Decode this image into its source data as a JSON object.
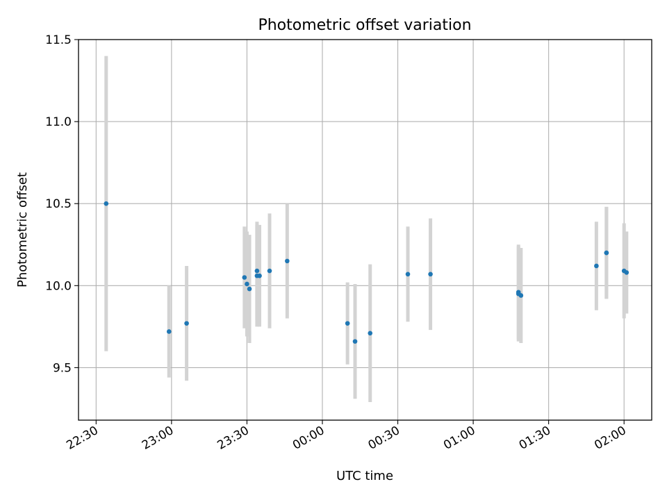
{
  "chart_data": {
    "type": "scatter",
    "title": "Photometric offset variation",
    "xlabel": "UTC time",
    "ylabel": "Photometric offset",
    "x_axis_type": "time",
    "xlim": [
      "22:23",
      "02:11"
    ],
    "ylim": [
      9.18,
      11.5
    ],
    "grid": true,
    "x_ticks": [
      "22:30",
      "23:00",
      "23:30",
      "00:00",
      "00:30",
      "01:00",
      "01:30",
      "02:00"
    ],
    "y_ticks": [
      9.5,
      10.0,
      10.5,
      11.0,
      11.5
    ],
    "y_tick_labels": [
      "9.5",
      "10.0",
      "10.5",
      "11.0",
      "11.5"
    ],
    "marker_color": "#1f77b4",
    "errorbar_color": "#d3d3d3",
    "points": [
      {
        "time": "22:34",
        "y": 10.5,
        "err": 0.9
      },
      {
        "time": "22:59",
        "y": 9.72,
        "err": 0.28
      },
      {
        "time": "23:06",
        "y": 9.77,
        "err": 0.35
      },
      {
        "time": "23:29",
        "y": 10.05,
        "err": 0.31
      },
      {
        "time": "23:30",
        "y": 10.01,
        "err": 0.32
      },
      {
        "time": "23:31",
        "y": 9.98,
        "err": 0.33
      },
      {
        "time": "23:34",
        "y": 10.09,
        "err": 0.3
      },
      {
        "time": "23:34",
        "y": 10.06,
        "err": 0.31
      },
      {
        "time": "23:35",
        "y": 10.06,
        "err": 0.31
      },
      {
        "time": "23:39",
        "y": 10.09,
        "err": 0.35
      },
      {
        "time": "23:46",
        "y": 10.15,
        "err": 0.35
      },
      {
        "time": "00:10",
        "y": 9.77,
        "err": 0.25
      },
      {
        "time": "00:13",
        "y": 9.66,
        "err": 0.35
      },
      {
        "time": "00:19",
        "y": 9.71,
        "err": 0.42
      },
      {
        "time": "00:34",
        "y": 10.07,
        "err": 0.29
      },
      {
        "time": "00:43",
        "y": 10.07,
        "err": 0.34
      },
      {
        "time": "01:18",
        "y": 9.96,
        "err": 0.29
      },
      {
        "time": "01:18",
        "y": 9.95,
        "err": 0.29
      },
      {
        "time": "01:19",
        "y": 9.94,
        "err": 0.29
      },
      {
        "time": "01:49",
        "y": 10.12,
        "err": 0.27
      },
      {
        "time": "01:53",
        "y": 10.2,
        "err": 0.28
      },
      {
        "time": "01:53",
        "y": 10.2,
        "err": 0.28
      },
      {
        "time": "02:00",
        "y": 10.09,
        "err": 0.29
      },
      {
        "time": "02:01",
        "y": 10.08,
        "err": 0.25
      }
    ]
  }
}
